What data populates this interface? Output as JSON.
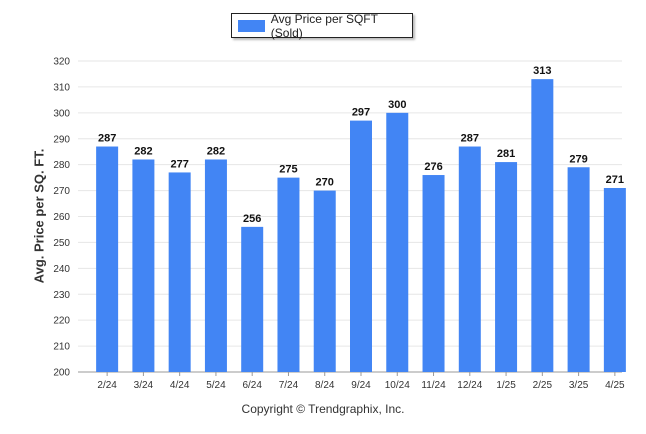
{
  "legend": {
    "label": "Avg Price per SQFT (Sold)"
  },
  "footer": {
    "copyright": "Copyright © Trendgraphix, Inc."
  },
  "colors": {
    "bar": "#4285f4",
    "grid": "#e6e6e6",
    "axis": "#999999"
  },
  "chart_data": {
    "type": "bar",
    "title": "",
    "xlabel": "",
    "ylabel": "Avg. Price per SQ. FT.",
    "categories": [
      "2/24",
      "3/24",
      "4/24",
      "5/24",
      "6/24",
      "7/24",
      "8/24",
      "9/24",
      "10/24",
      "11/24",
      "12/24",
      "1/25",
      "2/25",
      "3/25",
      "4/25"
    ],
    "series": [
      {
        "name": "Avg Price per SQFT (Sold)",
        "values": [
          287,
          282,
          277,
          282,
          256,
          275,
          270,
          297,
          300,
          276,
          287,
          281,
          313,
          279,
          271
        ]
      }
    ],
    "ylim": [
      200,
      320
    ],
    "yticks": [
      200,
      210,
      220,
      230,
      240,
      250,
      260,
      270,
      280,
      290,
      300,
      310,
      320
    ],
    "grid": true,
    "legend_position": "top-center",
    "data_labels": true
  }
}
